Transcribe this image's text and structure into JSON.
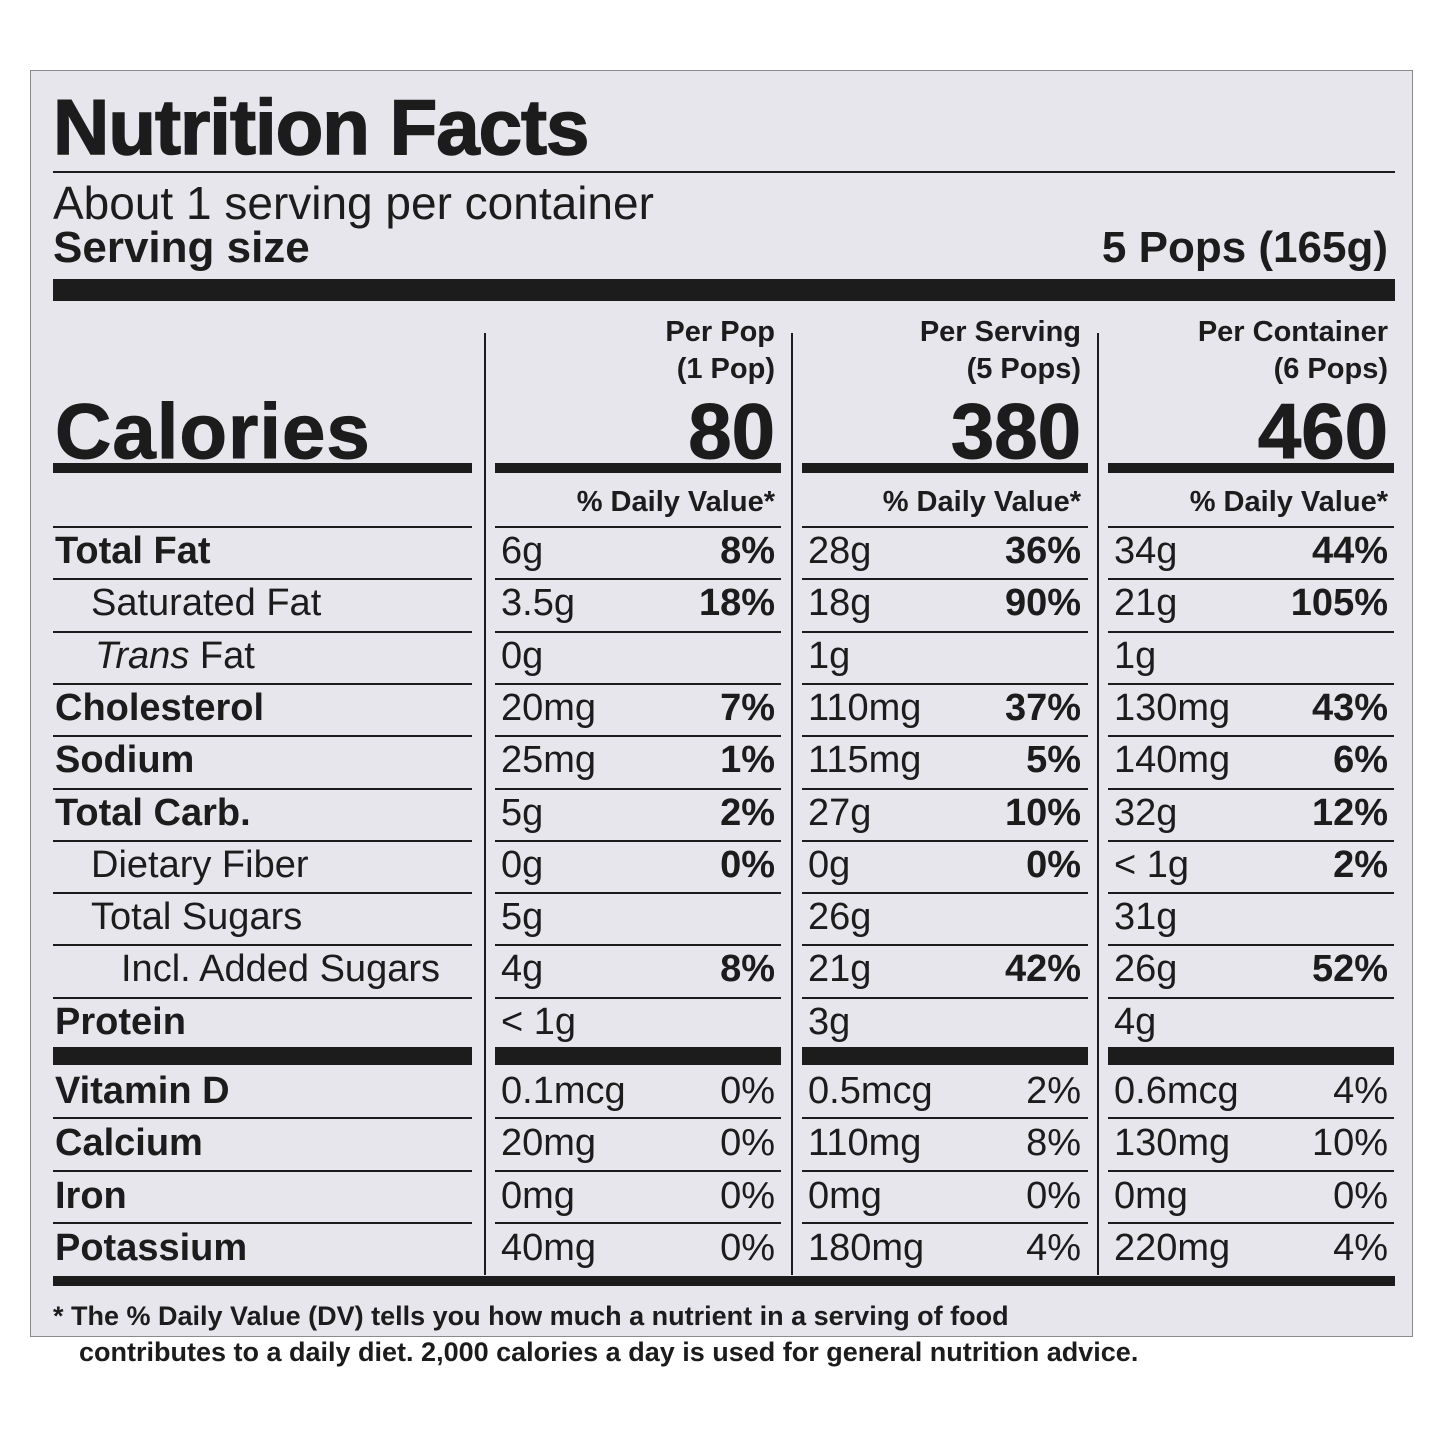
{
  "label": {
    "title": "Nutrition Facts",
    "servings_per_container": "About 1 serving per container",
    "serving_size_label": "Serving size",
    "serving_size_value": "5 Pops (165g)",
    "calories_label": "Calories",
    "columns": [
      {
        "head1": "Per Pop",
        "head2": "(1 Pop)",
        "calories": "80",
        "dv_header": "% Daily Value*"
      },
      {
        "head1": "Per Serving",
        "head2": "(5 Pops)",
        "calories": "380",
        "dv_header": "% Daily Value*"
      },
      {
        "head1": "Per Container",
        "head2": "(6 Pops)",
        "calories": "460",
        "dv_header": "% Daily Value*"
      }
    ],
    "nutrients": [
      {
        "name": "Total Fat",
        "values": [
          [
            "6g",
            "8%"
          ],
          [
            "28g",
            "36%"
          ],
          [
            "34g",
            "44%"
          ]
        ]
      },
      {
        "name": "Saturated Fat",
        "values": [
          [
            "3.5g",
            "18%"
          ],
          [
            "18g",
            "90%"
          ],
          [
            "21g",
            "105%"
          ]
        ]
      },
      {
        "name_italic": "Trans",
        "name_rest": " Fat",
        "values": [
          [
            "0g",
            ""
          ],
          [
            "1g",
            ""
          ],
          [
            "1g",
            ""
          ]
        ]
      },
      {
        "name": "Cholesterol",
        "values": [
          [
            "20mg",
            "7%"
          ],
          [
            "110mg",
            "37%"
          ],
          [
            "130mg",
            "43%"
          ]
        ]
      },
      {
        "name": "Sodium",
        "values": [
          [
            "25mg",
            "1%"
          ],
          [
            "115mg",
            "5%"
          ],
          [
            "140mg",
            "6%"
          ]
        ]
      },
      {
        "name": "Total Carb.",
        "values": [
          [
            "5g",
            "2%"
          ],
          [
            "27g",
            "10%"
          ],
          [
            "32g",
            "12%"
          ]
        ]
      },
      {
        "name": "Dietary Fiber",
        "values": [
          [
            "0g",
            "0%"
          ],
          [
            "0g",
            "0%"
          ],
          [
            "< 1g",
            "2%"
          ]
        ]
      },
      {
        "name": "Total Sugars",
        "values": [
          [
            "5g",
            ""
          ],
          [
            "26g",
            ""
          ],
          [
            "31g",
            ""
          ]
        ]
      },
      {
        "name": "Incl. Added Sugars",
        "values": [
          [
            "4g",
            "8%"
          ],
          [
            "21g",
            "42%"
          ],
          [
            "26g",
            "52%"
          ]
        ]
      },
      {
        "name": "Protein",
        "values": [
          [
            "< 1g",
            ""
          ],
          [
            "3g",
            ""
          ],
          [
            "4g",
            ""
          ]
        ]
      }
    ],
    "vitamins": [
      {
        "name": "Vitamin D",
        "values": [
          [
            "0.1mcg",
            "0%"
          ],
          [
            "0.5mcg",
            "2%"
          ],
          [
            "0.6mcg",
            "4%"
          ]
        ]
      },
      {
        "name": "Calcium",
        "values": [
          [
            "20mg",
            "0%"
          ],
          [
            "110mg",
            "8%"
          ],
          [
            "130mg",
            "10%"
          ]
        ]
      },
      {
        "name": "Iron",
        "values": [
          [
            "0mg",
            "0%"
          ],
          [
            "0mg",
            "0%"
          ],
          [
            "0mg",
            "0%"
          ]
        ]
      },
      {
        "name": "Potassium",
        "values": [
          [
            "40mg",
            "0%"
          ],
          [
            "180mg",
            "4%"
          ],
          [
            "220mg",
            "4%"
          ]
        ]
      }
    ],
    "footnote_line1": "* The % Daily Value (DV) tells you how much a nutrient in a serving of food",
    "footnote_line2": "contributes to a daily diet. 2,000 calories a day is used for general nutrition advice."
  }
}
